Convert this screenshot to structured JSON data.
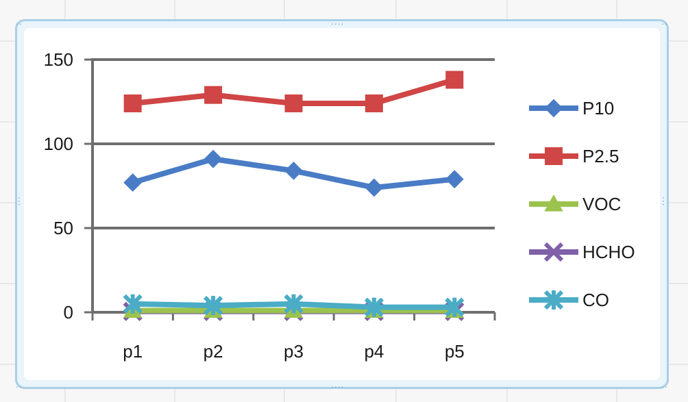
{
  "chart_data": {
    "type": "line",
    "title": "",
    "xlabel": "",
    "ylabel": "",
    "categories": [
      "p1",
      "p2",
      "p3",
      "p4",
      "p5"
    ],
    "ylim": [
      0,
      150
    ],
    "yticks": [
      0,
      50,
      100,
      150
    ],
    "grid": true,
    "legend": "right",
    "series": [
      {
        "name": "P10",
        "color": "#4a7cc6",
        "marker": "diamond",
        "values": [
          77,
          91,
          84,
          74,
          79
        ]
      },
      {
        "name": "P2.5",
        "color": "#d04545",
        "marker": "square",
        "values": [
          124,
          129,
          124,
          124,
          138
        ]
      },
      {
        "name": "VOC",
        "color": "#9bc34d",
        "marker": "triangle",
        "values": [
          1,
          1,
          1,
          1,
          1
        ]
      },
      {
        "name": "HCHO",
        "color": "#8060a8",
        "marker": "x",
        "values": [
          0.5,
          0.5,
          0.5,
          0.5,
          0.5
        ]
      },
      {
        "name": "CO",
        "color": "#4bacc6",
        "marker": "star",
        "values": [
          5,
          4,
          5,
          3,
          3
        ]
      }
    ]
  }
}
